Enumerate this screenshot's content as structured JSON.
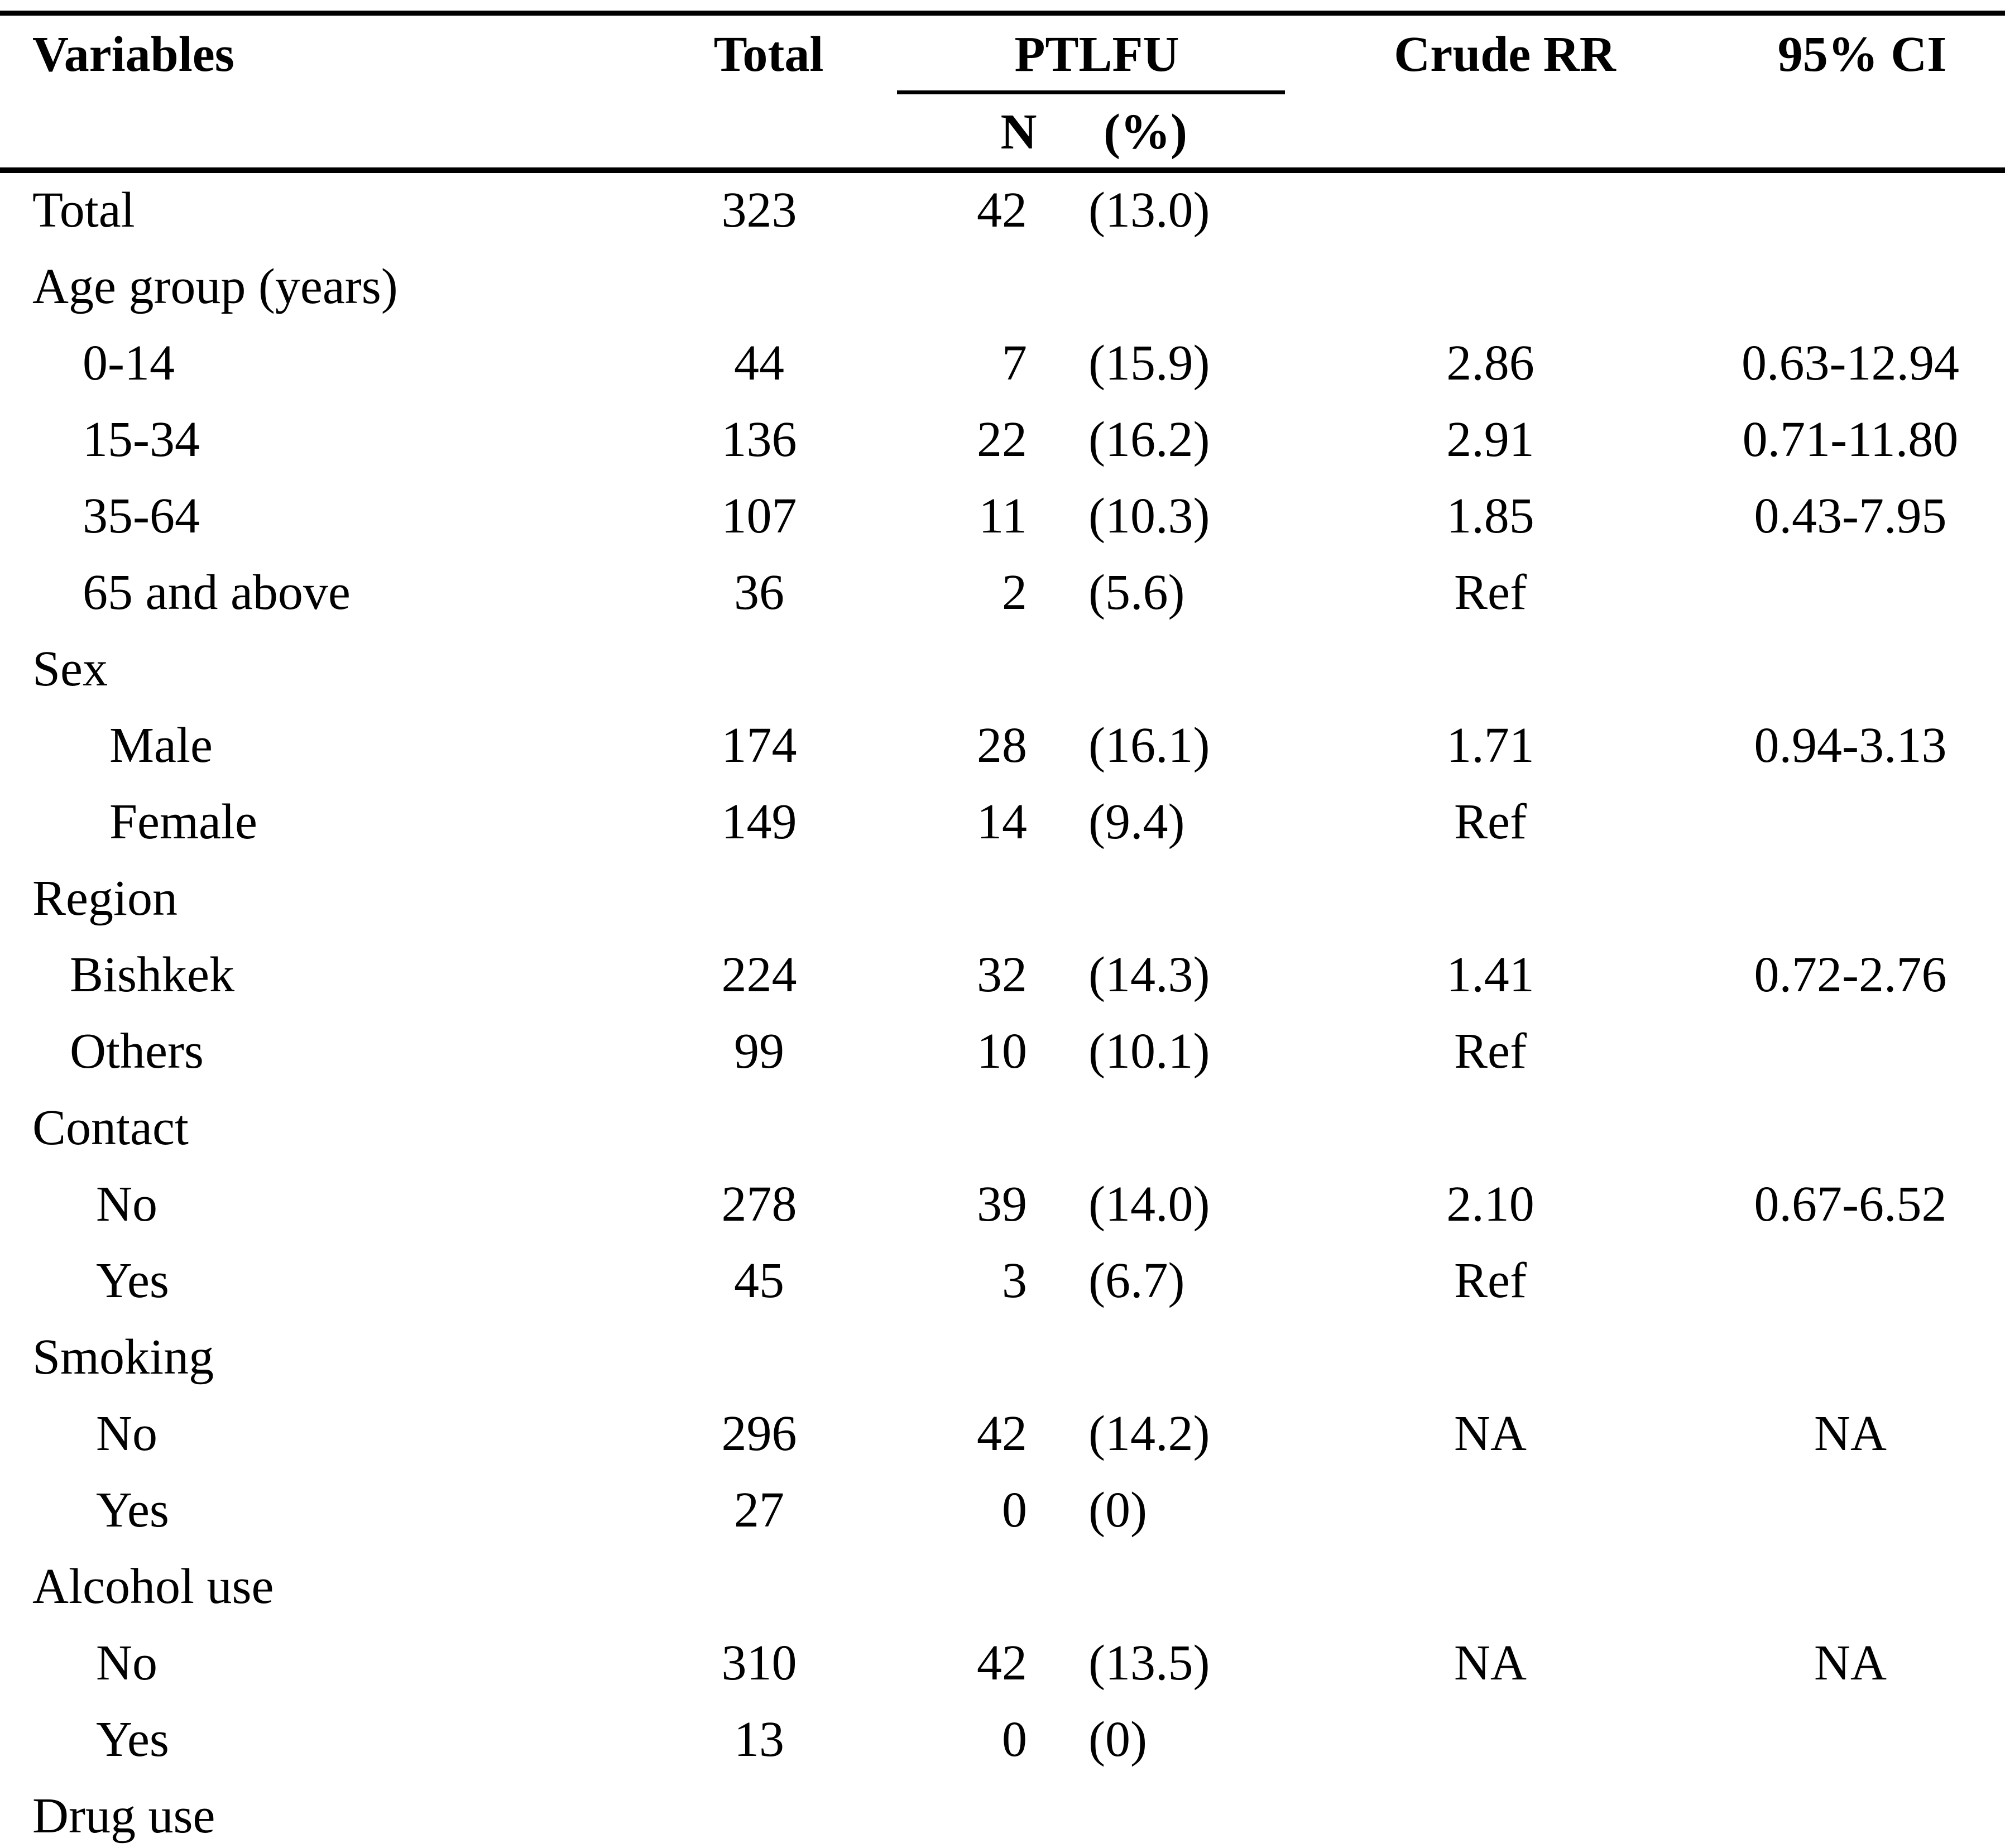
{
  "colors": {
    "text": "#000000",
    "background": "#ffffff"
  },
  "header": {
    "variables": "Variables",
    "total": "Total",
    "ptlfu": "PTLFU",
    "crude_rr": "Crude RR",
    "ci95": "95% CI",
    "sub_n": "N",
    "sub_pct": "(%)"
  },
  "rows": [
    {
      "label": "Total",
      "indent": 0,
      "total": "323",
      "n": "42",
      "pct": "(13.0)",
      "rr": "",
      "ci": ""
    },
    {
      "label": "Age group (years)",
      "indent": 0,
      "total": "",
      "n": "",
      "pct": "",
      "rr": "",
      "ci": ""
    },
    {
      "label": "0-14",
      "indent": 2,
      "total": "44",
      "n": "7",
      "pct": "(15.9)",
      "rr": "2.86",
      "ci": "0.63-12.94"
    },
    {
      "label": "15-34",
      "indent": 2,
      "total": "136",
      "n": "22",
      "pct": "(16.2)",
      "rr": "2.91",
      "ci": "0.71-11.80"
    },
    {
      "label": "35-64",
      "indent": 2,
      "total": "107",
      "n": "11",
      "pct": "(10.3)",
      "rr": "1.85",
      "ci": "0.43-7.95"
    },
    {
      "label": "65 and above",
      "indent": 2,
      "total": "36",
      "n": "2",
      "pct": "(5.6)",
      "rr": "Ref",
      "ci": ""
    },
    {
      "label": "Sex",
      "indent": 0,
      "total": "",
      "n": "",
      "pct": "",
      "rr": "",
      "ci": ""
    },
    {
      "label": "Male",
      "indent": 4,
      "total": "174",
      "n": "28",
      "pct": "(16.1)",
      "rr": "1.71",
      "ci": "0.94-3.13"
    },
    {
      "label": "Female",
      "indent": 4,
      "total": "149",
      "n": "14",
      "pct": "(9.4)",
      "rr": "Ref",
      "ci": ""
    },
    {
      "label": "Region",
      "indent": 0,
      "total": "",
      "n": "",
      "pct": "",
      "rr": "",
      "ci": ""
    },
    {
      "label": "Bishkek",
      "indent": 1,
      "total": "224",
      "n": "32",
      "pct": "(14.3)",
      "rr": "1.41",
      "ci": "0.72-2.76"
    },
    {
      "label": "Others",
      "indent": 1,
      "total": "99",
      "n": "10",
      "pct": "(10.1)",
      "rr": "Ref",
      "ci": ""
    },
    {
      "label": "Contact",
      "indent": 0,
      "total": "",
      "n": "",
      "pct": "",
      "rr": "",
      "ci": ""
    },
    {
      "label": "No",
      "indent": 3,
      "total": "278",
      "n": "39",
      "pct": "(14.0)",
      "rr": "2.10",
      "ci": "0.67-6.52"
    },
    {
      "label": "Yes",
      "indent": 3,
      "total": "45",
      "n": "3",
      "pct": "(6.7)",
      "rr": "Ref",
      "ci": ""
    },
    {
      "label": "Smoking",
      "indent": 0,
      "total": "",
      "n": "",
      "pct": "",
      "rr": "",
      "ci": ""
    },
    {
      "label": "No",
      "indent": 3,
      "total": "296",
      "n": "42",
      "pct": "(14.2)",
      "rr": "NA",
      "ci": "NA"
    },
    {
      "label": "Yes",
      "indent": 3,
      "total": "27",
      "n": "0",
      "pct": "(0)",
      "rr": "",
      "ci": ""
    },
    {
      "label": "Alcohol use",
      "indent": 0,
      "total": "",
      "n": "",
      "pct": "",
      "rr": "",
      "ci": ""
    },
    {
      "label": "No",
      "indent": 3,
      "total": "310",
      "n": "42",
      "pct": "(13.5)",
      "rr": "NA",
      "ci": "NA"
    },
    {
      "label": "Yes",
      "indent": 3,
      "total": "13",
      "n": "0",
      "pct": "(0)",
      "rr": "",
      "ci": ""
    },
    {
      "label": "Drug use",
      "indent": 0,
      "total": "",
      "n": "",
      "pct": "",
      "rr": "",
      "ci": ""
    }
  ]
}
